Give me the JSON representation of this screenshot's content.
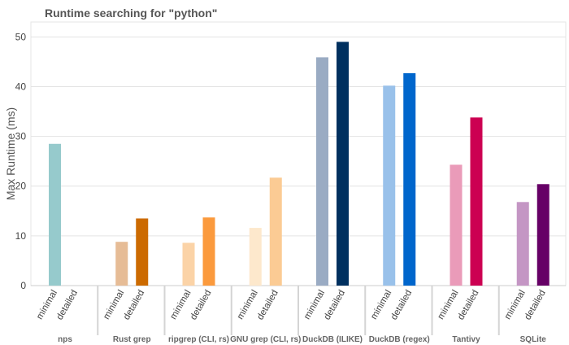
{
  "chart_data": {
    "type": "bar",
    "title": "Runtime searching for \"python\"",
    "ylabel": "Max Runtime (ms)",
    "xlabel": "",
    "ylim": [
      0,
      53
    ],
    "yticks": [
      0,
      10,
      20,
      30,
      40,
      50
    ],
    "grid": true,
    "legend": "none",
    "subcategories": [
      "minimal",
      "detailed"
    ],
    "groups": [
      {
        "label": "nps",
        "values": [
          28.5,
          null
        ],
        "colors": [
          "#96cacc",
          "#5aa8ad"
        ]
      },
      {
        "label": "Rust grep",
        "values": [
          8.8,
          13.5
        ],
        "colors": [
          "#e6bc96",
          "#cc6a00"
        ]
      },
      {
        "label": "ripgrep (CLI, rs)",
        "values": [
          8.6,
          13.7
        ],
        "colors": [
          "#fbd3a7",
          "#fb9a3d"
        ]
      },
      {
        "label": "GNU grep (CLI, rs)",
        "values": [
          11.6,
          21.7
        ],
        "colors": [
          "#fde8cc",
          "#fbcb94"
        ]
      },
      {
        "label": "DuckDB (ILIKE)",
        "values": [
          45.9,
          49.0
        ],
        "colors": [
          "#9aabc3",
          "#00305f"
        ]
      },
      {
        "label": "DuckDB (regex)",
        "values": [
          40.2,
          42.7
        ],
        "colors": [
          "#99c1ea",
          "#0066cc"
        ]
      },
      {
        "label": "Tantivy",
        "values": [
          24.3,
          33.8
        ],
        "colors": [
          "#ea9bb9",
          "#cc0052"
        ]
      },
      {
        "label": "SQLite",
        "values": [
          16.8,
          20.4
        ],
        "colors": [
          "#c496c4",
          "#660066"
        ]
      }
    ]
  }
}
